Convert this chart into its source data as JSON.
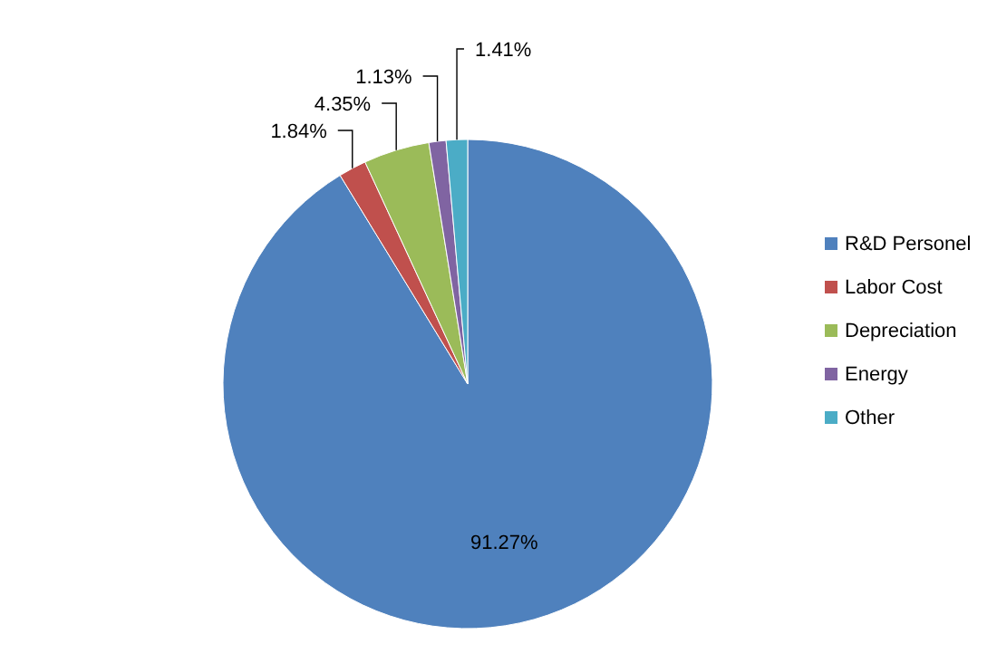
{
  "chart_data": {
    "type": "pie",
    "categories": [
      "R&D Personel",
      "Labor Cost",
      "Depreciation",
      "Energy",
      "Other"
    ],
    "values": [
      91.27,
      1.84,
      4.35,
      1.13,
      1.41
    ],
    "colors": [
      "#4f81bd",
      "#c0504d",
      "#9bbb59",
      "#8064a2",
      "#4bacc6"
    ],
    "value_labels": [
      "91.27%",
      "1.84%",
      "4.35%",
      "1.13%",
      "1.41%"
    ],
    "legend": "right"
  }
}
